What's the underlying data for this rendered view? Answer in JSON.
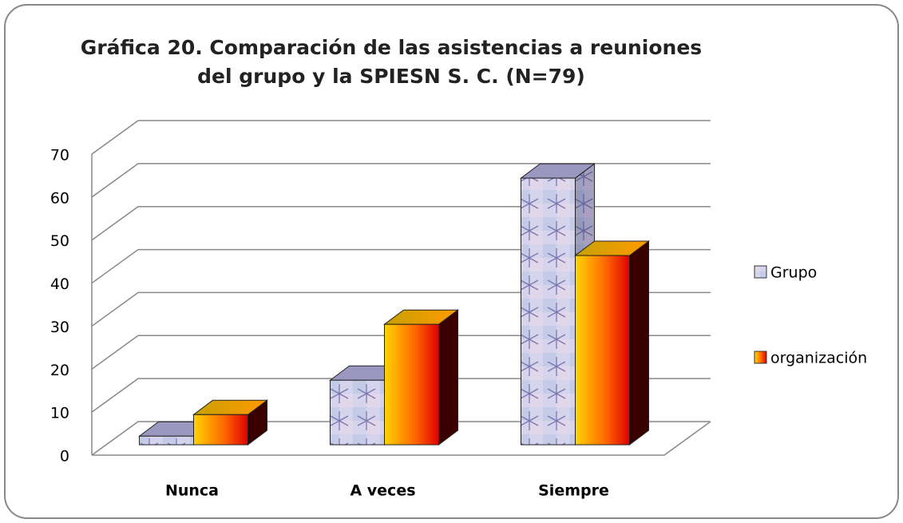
{
  "chart_data": {
    "type": "bar3d",
    "title": "Gráfica 20. Comparación de las asistencias a reuniones del grupo y la SPIESN S. C. (N=79)",
    "categories": [
      "Nunca",
      "A veces",
      "Siempre"
    ],
    "series": [
      {
        "name": "Grupo",
        "color": "#c9c6e6",
        "values": [
          2,
          15,
          62
        ]
      },
      {
        "name": "organización",
        "color": "#ff3300",
        "values": [
          7,
          28,
          44
        ]
      }
    ],
    "ylim": [
      0,
      70
    ],
    "yticks": [
      0,
      10,
      20,
      30,
      40,
      50,
      60,
      70
    ],
    "grid": true,
    "legend": "right"
  }
}
